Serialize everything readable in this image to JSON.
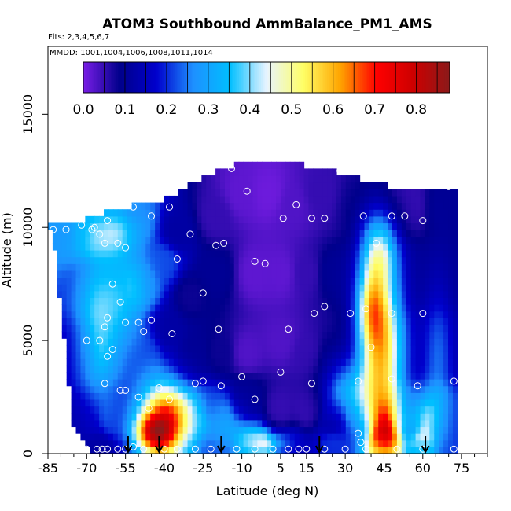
{
  "chart_data": {
    "type": "heatmap",
    "title": "ATOM3 Southbound AmmBalance_PM1_AMS",
    "flights_note": "Flts: 2,3,4,5,6,7",
    "dates_note": "MMDD: 1001,1004,1006,1008,1011,1014",
    "xlabel": "Latitude (deg N)",
    "ylabel": "Altitude (m)",
    "xlim": [
      -85,
      85
    ],
    "ylim": [
      0,
      18000
    ],
    "x_ticks": [
      -85,
      -70,
      -55,
      -40,
      -25,
      -10,
      5,
      15,
      30,
      45,
      60,
      75
    ],
    "x_tick_labels": [
      "-85",
      "-70",
      "-55",
      "-40",
      "-25",
      "-10",
      "5",
      "15",
      "30",
      "45",
      "60",
      "75"
    ],
    "y_ticks": [
      0,
      5000,
      10000,
      15000
    ],
    "y_tick_labels": [
      "0",
      "5000",
      "10000",
      "15000"
    ],
    "colorbar": {
      "ticks": [
        0.0,
        0.1,
        0.2,
        0.3,
        0.4,
        0.5,
        0.6,
        0.7,
        0.8
      ],
      "tick_labels": [
        "0.0",
        "0.1",
        "0.2",
        "0.3",
        "0.4",
        "0.5",
        "0.6",
        "0.7",
        "0.8"
      ],
      "range": [
        0.0,
        0.88
      ],
      "colors": [
        "#7a1ee6",
        "#00008b",
        "#0000cd",
        "#1e90ff",
        "#00bfff",
        "#e8f4ff",
        "#ffff66",
        "#ffa500",
        "#ff0000",
        "#cd0000",
        "#8b1a1a"
      ]
    },
    "profiles": [
      {
        "lat": -83,
        "bottom": 9800,
        "top": 10100
      },
      {
        "lat": -75,
        "bottom": 1000,
        "top": 10200
      },
      {
        "lat": -68,
        "bottom": 100,
        "top": 10400
      },
      {
        "lat": -62,
        "bottom": 100,
        "top": 10700
      },
      {
        "lat": -56,
        "bottom": 100,
        "top": 10900
      },
      {
        "lat": -50,
        "bottom": 100,
        "top": 11000
      },
      {
        "lat": -45,
        "bottom": 100,
        "top": 11000
      },
      {
        "lat": -40,
        "bottom": 100,
        "top": 11300
      },
      {
        "lat": -34,
        "bottom": 100,
        "top": 11600
      },
      {
        "lat": -28,
        "bottom": 100,
        "top": 12000
      },
      {
        "lat": -22,
        "bottom": 100,
        "top": 12400
      },
      {
        "lat": -15,
        "bottom": 100,
        "top": 12700
      },
      {
        "lat": -10,
        "bottom": 100,
        "top": 12900
      },
      {
        "lat": 0,
        "bottom": 100,
        "top": 12900
      },
      {
        "lat": 10,
        "bottom": 100,
        "top": 12800
      },
      {
        "lat": 18,
        "bottom": 100,
        "top": 12700
      },
      {
        "lat": 25,
        "bottom": 100,
        "top": 12500
      },
      {
        "lat": 32,
        "bottom": 100,
        "top": 12300
      },
      {
        "lat": 38,
        "bottom": 100,
        "top": 12000
      },
      {
        "lat": 44,
        "bottom": 100,
        "top": 11900
      },
      {
        "lat": 50,
        "bottom": 100,
        "top": 11800
      },
      {
        "lat": 56,
        "bottom": 100,
        "top": 11800
      },
      {
        "lat": 62,
        "bottom": 100,
        "top": 11700
      },
      {
        "lat": 68,
        "bottom": 100,
        "top": 11800
      },
      {
        "lat": 72,
        "bottom": 100,
        "top": 11800
      }
    ],
    "hotspots": [
      {
        "lat": -40,
        "alt": 1500,
        "sx": 7,
        "sy": 1200,
        "value": 0.48
      },
      {
        "lat": -45,
        "alt": 900,
        "sx": 5,
        "sy": 600,
        "value": 0.3
      },
      {
        "lat": 44,
        "alt": 4500,
        "sx": 6,
        "sy": 2500,
        "value": 0.45
      },
      {
        "lat": 40,
        "alt": 6500,
        "sx": 4,
        "sy": 1200,
        "value": 0.25
      },
      {
        "lat": 46,
        "alt": 1200,
        "sx": 5,
        "sy": 900,
        "value": 0.25
      },
      {
        "lat": 43,
        "alt": 9000,
        "sx": 5,
        "sy": 1200,
        "value": 0.28
      },
      {
        "lat": 30,
        "alt": 3000,
        "sx": 6,
        "sy": 900,
        "value": 0.15
      },
      {
        "lat": -66,
        "alt": 5500,
        "sx": 6,
        "sy": 2500,
        "value": 0.18
      },
      {
        "lat": -55,
        "alt": 7000,
        "sx": 6,
        "sy": 1500,
        "value": 0.12
      },
      {
        "lat": -60,
        "alt": 9800,
        "sx": 6,
        "sy": 600,
        "value": 0.1
      },
      {
        "lat": -15,
        "alt": 1200,
        "sx": 6,
        "sy": 800,
        "value": 0.1
      },
      {
        "lat": 0,
        "alt": 500,
        "sx": 6,
        "sy": 400,
        "value": 0.15
      },
      {
        "lat": 60,
        "alt": 1500,
        "sx": 4,
        "sy": 800,
        "value": 0.18
      },
      {
        "lat": 66,
        "alt": 4000,
        "sx": 4,
        "sy": 2500,
        "value": 0.12
      }
    ],
    "base_points": [
      {
        "lat": -80,
        "alt": 9800,
        "value": 0.28
      },
      {
        "lat": -70,
        "alt": 9800,
        "value": 0.3
      },
      {
        "lat": -60,
        "alt": 10200,
        "value": 0.28
      },
      {
        "lat": -50,
        "alt": 10300,
        "value": 0.26
      },
      {
        "lat": -35,
        "alt": 9800,
        "value": 0.12
      },
      {
        "lat": -20,
        "alt": 10500,
        "value": 0.05
      },
      {
        "lat": -10,
        "alt": 11500,
        "value": 0.02
      },
      {
        "lat": 0,
        "alt": 11500,
        "value": 0.01
      },
      {
        "lat": 10,
        "alt": 11000,
        "value": 0.03
      },
      {
        "lat": 20,
        "alt": 11500,
        "value": 0.05
      },
      {
        "lat": 35,
        "alt": 11000,
        "value": 0.08
      },
      {
        "lat": 55,
        "alt": 11000,
        "value": 0.05
      },
      {
        "lat": 68,
        "alt": 11000,
        "value": 0.1
      },
      {
        "lat": -70,
        "alt": 7500,
        "value": 0.2
      },
      {
        "lat": -60,
        "alt": 7000,
        "value": 0.2
      },
      {
        "lat": -48,
        "alt": 7500,
        "value": 0.25
      },
      {
        "lat": -40,
        "alt": 8500,
        "value": 0.22
      },
      {
        "lat": -30,
        "alt": 7000,
        "value": 0.08
      },
      {
        "lat": -20,
        "alt": 8000,
        "value": 0.1
      },
      {
        "lat": -5,
        "alt": 8000,
        "value": 0.02
      },
      {
        "lat": 5,
        "alt": 8000,
        "value": 0.02
      },
      {
        "lat": 15,
        "alt": 8000,
        "value": 0.05
      },
      {
        "lat": 25,
        "alt": 8000,
        "value": 0.1
      },
      {
        "lat": 55,
        "alt": 8000,
        "value": 0.1
      },
      {
        "lat": 68,
        "alt": 8000,
        "value": 0.1
      },
      {
        "lat": -72,
        "alt": 4500,
        "value": 0.15
      },
      {
        "lat": -60,
        "alt": 4500,
        "value": 0.2
      },
      {
        "lat": -48,
        "alt": 4500,
        "value": 0.2
      },
      {
        "lat": -38,
        "alt": 5500,
        "value": 0.12
      },
      {
        "lat": -28,
        "alt": 4500,
        "value": 0.1
      },
      {
        "lat": -18,
        "alt": 4500,
        "value": 0.08
      },
      {
        "lat": -8,
        "alt": 4500,
        "value": 0.03
      },
      {
        "lat": 5,
        "alt": 5000,
        "value": 0.03
      },
      {
        "lat": 15,
        "alt": 4500,
        "value": 0.05
      },
      {
        "lat": 25,
        "alt": 4500,
        "value": 0.08
      },
      {
        "lat": 55,
        "alt": 4500,
        "value": 0.12
      },
      {
        "lat": 68,
        "alt": 4500,
        "value": 0.12
      },
      {
        "lat": -70,
        "alt": 1500,
        "value": 0.12
      },
      {
        "lat": -60,
        "alt": 1500,
        "value": 0.18
      },
      {
        "lat": -50,
        "alt": 1500,
        "value": 0.18
      },
      {
        "lat": -28,
        "alt": 1500,
        "value": 0.28
      },
      {
        "lat": -20,
        "alt": 2000,
        "value": 0.2
      },
      {
        "lat": -8,
        "alt": 2500,
        "value": 0.1
      },
      {
        "lat": 5,
        "alt": 2000,
        "value": 0.05
      },
      {
        "lat": 15,
        "alt": 2000,
        "value": 0.05
      },
      {
        "lat": 25,
        "alt": 1500,
        "value": 0.12
      },
      {
        "lat": 35,
        "alt": 1500,
        "value": 0.2
      },
      {
        "lat": 55,
        "alt": 1500,
        "value": 0.15
      },
      {
        "lat": 68,
        "alt": 1500,
        "value": 0.2
      },
      {
        "lat": -65,
        "alt": 300,
        "value": 0.1
      },
      {
        "lat": -35,
        "alt": 300,
        "value": 0.25
      },
      {
        "lat": -20,
        "alt": 300,
        "value": 0.2
      },
      {
        "lat": -5,
        "alt": 300,
        "value": 0.3
      },
      {
        "lat": 10,
        "alt": 300,
        "value": 0.15
      },
      {
        "lat": 25,
        "alt": 300,
        "value": 0.2
      },
      {
        "lat": 45,
        "alt": 300,
        "value": 0.4
      },
      {
        "lat": 60,
        "alt": 300,
        "value": 0.3
      },
      {
        "lat": 70,
        "alt": 300,
        "value": 0.2
      }
    ],
    "sample_points": [
      {
        "lat": -83,
        "alt": 9900
      },
      {
        "lat": -78,
        "alt": 9900
      },
      {
        "lat": -72,
        "alt": 10100
      },
      {
        "lat": -68,
        "alt": 9900
      },
      {
        "lat": -67,
        "alt": 10000
      },
      {
        "lat": -65,
        "alt": 9700
      },
      {
        "lat": -63,
        "alt": 9300
      },
      {
        "lat": -62,
        "alt": 10300
      },
      {
        "lat": -58,
        "alt": 9300
      },
      {
        "lat": -55,
        "alt": 9100
      },
      {
        "lat": -52,
        "alt": 10900
      },
      {
        "lat": -45,
        "alt": 10500
      },
      {
        "lat": -38,
        "alt": 10900
      },
      {
        "lat": -35,
        "alt": 8600
      },
      {
        "lat": -30,
        "alt": 9700
      },
      {
        "lat": -20,
        "alt": 9200
      },
      {
        "lat": -17,
        "alt": 9300
      },
      {
        "lat": -14,
        "alt": 12600
      },
      {
        "lat": -8,
        "alt": 11600
      },
      {
        "lat": -5,
        "alt": 8500
      },
      {
        "lat": -1,
        "alt": 8400
      },
      {
        "lat": 6,
        "alt": 10400
      },
      {
        "lat": 11,
        "alt": 11000
      },
      {
        "lat": 17,
        "alt": 10400
      },
      {
        "lat": 22,
        "alt": 10400
      },
      {
        "lat": 28,
        "alt": 12500
      },
      {
        "lat": 37,
        "alt": 10500
      },
      {
        "lat": 42,
        "alt": 9300
      },
      {
        "lat": 48,
        "alt": 10500
      },
      {
        "lat": 53,
        "alt": 10500
      },
      {
        "lat": 60,
        "alt": 10300
      },
      {
        "lat": 70,
        "alt": 11800
      },
      {
        "lat": -60,
        "alt": 7500
      },
      {
        "lat": -57,
        "alt": 6700
      },
      {
        "lat": -62,
        "alt": 6000
      },
      {
        "lat": -55,
        "alt": 5800
      },
      {
        "lat": -50,
        "alt": 5800
      },
      {
        "lat": -48,
        "alt": 5400
      },
      {
        "lat": -45,
        "alt": 5900
      },
      {
        "lat": -63,
        "alt": 5600
      },
      {
        "lat": -70,
        "alt": 5000
      },
      {
        "lat": -65,
        "alt": 5000
      },
      {
        "lat": -60,
        "alt": 4600
      },
      {
        "lat": -62,
        "alt": 4300
      },
      {
        "lat": -37,
        "alt": 5300
      },
      {
        "lat": -25,
        "alt": 7100
      },
      {
        "lat": -19,
        "alt": 5500
      },
      {
        "lat": 8,
        "alt": 5500
      },
      {
        "lat": 18,
        "alt": 6200
      },
      {
        "lat": 22,
        "alt": 6500
      },
      {
        "lat": 32,
        "alt": 6200
      },
      {
        "lat": 38,
        "alt": 6400
      },
      {
        "lat": 40,
        "alt": 4700
      },
      {
        "lat": 48,
        "alt": 6200
      },
      {
        "lat": 60,
        "alt": 6200
      },
      {
        "lat": -63,
        "alt": 3100
      },
      {
        "lat": -57,
        "alt": 2800
      },
      {
        "lat": -55,
        "alt": 2800
      },
      {
        "lat": -50,
        "alt": 2500
      },
      {
        "lat": -46,
        "alt": 2000
      },
      {
        "lat": -42,
        "alt": 2900
      },
      {
        "lat": -38,
        "alt": 2400
      },
      {
        "lat": -28,
        "alt": 3100
      },
      {
        "lat": -25,
        "alt": 3200
      },
      {
        "lat": -18,
        "alt": 3000
      },
      {
        "lat": -10,
        "alt": 3400
      },
      {
        "lat": -5,
        "alt": 2400
      },
      {
        "lat": 5,
        "alt": 3600
      },
      {
        "lat": 17,
        "alt": 3100
      },
      {
        "lat": 35,
        "alt": 3200
      },
      {
        "lat": 48,
        "alt": 3300
      },
      {
        "lat": 58,
        "alt": 3000
      },
      {
        "lat": 72,
        "alt": 3200
      },
      {
        "lat": 35,
        "alt": 900
      },
      {
        "lat": 36,
        "alt": 500
      },
      {
        "lat": -70,
        "alt": 200
      },
      {
        "lat": -66,
        "alt": 200
      },
      {
        "lat": -64,
        "alt": 200
      },
      {
        "lat": -62,
        "alt": 200
      },
      {
        "lat": -58,
        "alt": 200
      },
      {
        "lat": -55,
        "alt": 200
      },
      {
        "lat": -52,
        "alt": 300
      },
      {
        "lat": -48,
        "alt": 200
      },
      {
        "lat": -40,
        "alt": 200
      },
      {
        "lat": -35,
        "alt": 200
      },
      {
        "lat": -28,
        "alt": 200
      },
      {
        "lat": -22,
        "alt": 200
      },
      {
        "lat": -12,
        "alt": 200
      },
      {
        "lat": -5,
        "alt": 200
      },
      {
        "lat": 2,
        "alt": 200
      },
      {
        "lat": 8,
        "alt": 200
      },
      {
        "lat": 12,
        "alt": 200
      },
      {
        "lat": 15,
        "alt": 200
      },
      {
        "lat": 22,
        "alt": 200
      },
      {
        "lat": 30,
        "alt": 200
      },
      {
        "lat": 38,
        "alt": 200
      },
      {
        "lat": 50,
        "alt": 200
      },
      {
        "lat": 60,
        "alt": 200
      },
      {
        "lat": 72,
        "alt": 200
      }
    ],
    "arrows_lat": [
      -54,
      -42,
      -18,
      20,
      61
    ]
  }
}
